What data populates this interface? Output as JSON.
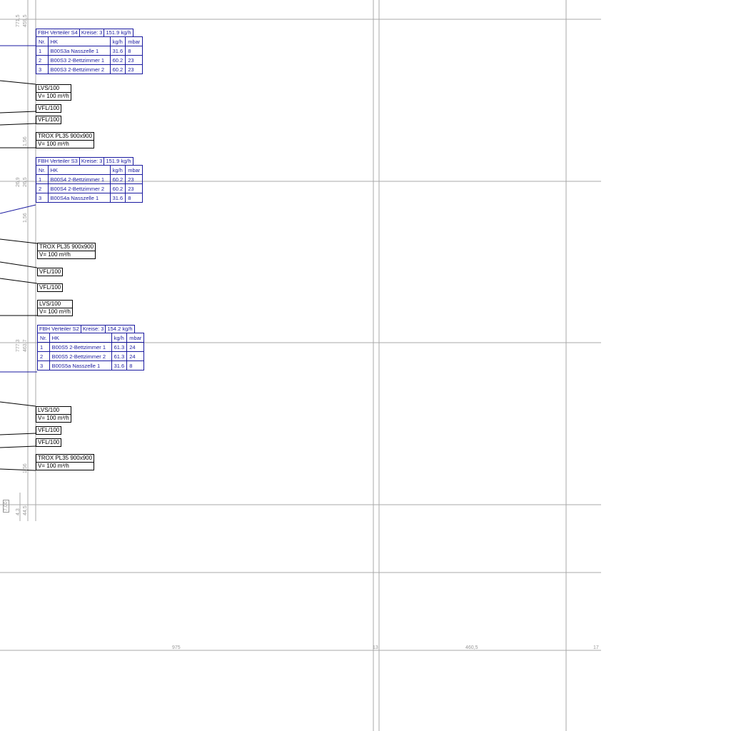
{
  "colors": {
    "grid": "#a8a8a8",
    "table": "#1a1aa0",
    "leader": "#000000"
  },
  "tables": [
    {
      "title": "FBH Verteiler S4",
      "kreise": "Kreise: 3",
      "flow": "151.9 kg/h",
      "columns": [
        "Nr.",
        "HK",
        "kg/h",
        "mbar"
      ],
      "rows": [
        [
          "1",
          "B00S3a  Nasszelle 1",
          "31.6",
          "8"
        ],
        [
          "2",
          "B00S3 2-Bettzimmer 1",
          "60.2",
          "23"
        ],
        [
          "3",
          "B00S3 2-Bettzimmer 2",
          "60.2",
          "23"
        ]
      ]
    },
    {
      "title": "FBH Verteiler S3",
      "kreise": "Kreise: 3",
      "flow": "151.9 kg/h",
      "columns": [
        "Nr.",
        "HK",
        "kg/h",
        "mbar"
      ],
      "rows": [
        [
          "1",
          "B00S4 2-Bettzimmer 1",
          "60.2",
          "23"
        ],
        [
          "2",
          "B00S4 2-Bettzimmer 2",
          "60.2",
          "23"
        ],
        [
          "3",
          "B00S4a  Nasszelle 1",
          "31.6",
          "8"
        ]
      ]
    },
    {
      "title": "FBH Verteiler S2",
      "kreise": "Kreise: 3",
      "flow": "154.2 kg/h",
      "columns": [
        "Nr.",
        "HK",
        "kg/h",
        "mbar"
      ],
      "rows": [
        [
          "1",
          "B00S5 2-Bettzimmer 1",
          "61.3",
          "24"
        ],
        [
          "2",
          "B00S5 2-Bettzimmer 2",
          "61.3",
          "24"
        ],
        [
          "3",
          "B00S5a  Nasszelle 1",
          "31.6",
          "8"
        ]
      ]
    }
  ],
  "labels": {
    "lvs1": [
      "LVS/100",
      "V= 100 m³/h"
    ],
    "vfl1": "VFL/100",
    "vfl2": "VFL/100",
    "trox1": [
      "TROX PL35 900x900",
      "V= 100 m³/h"
    ],
    "trox2": [
      "TROX PL35 900x900",
      "V= 100 m³/h"
    ],
    "vfl3": "VFL/100",
    "vfl4": "VFL/100",
    "lvs2": [
      "LVS/100",
      "V= 100 m³/h"
    ],
    "lvs3": [
      "LVS/100",
      "V= 100 m³/h"
    ],
    "vfl5": "VFL/100",
    "vfl6": "VFL/100",
    "trox3": [
      "TROX PL35 900x900",
      "V= 100 m³/h"
    ]
  },
  "dimensions": {
    "d1": "771,5",
    "d2": "459,5",
    "d3": "1,56",
    "d4": "26,9",
    "d5": "26,5",
    "d6": "1,56",
    "d7": "777,3",
    "d8": "463,7",
    "d9": "1,56",
    "d10": "7,00",
    "d11": "4,3",
    "d12": "44,5",
    "b1": "975",
    "b2": "13",
    "b3": "460,5",
    "b4": "17"
  }
}
